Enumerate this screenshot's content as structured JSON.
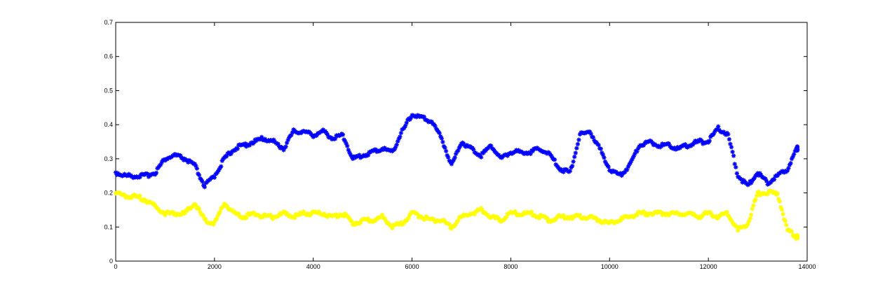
{
  "chart_data": {
    "type": "scatter",
    "title": "",
    "xlabel": "",
    "ylabel": "",
    "xlim": [
      0,
      14000
    ],
    "ylim": [
      0,
      0.7
    ],
    "xticks": [
      0,
      2000,
      4000,
      6000,
      8000,
      10000,
      12000,
      14000
    ],
    "yticks": [
      0,
      0.1,
      0.2,
      0.3,
      0.4,
      0.5,
      0.6,
      0.7
    ],
    "xtick_labels": [
      "0",
      "2000",
      "4000",
      "6000",
      "8000",
      "10000",
      "12000",
      "14000"
    ],
    "ytick_labels": [
      "0",
      "0.1",
      "0.2",
      "0.3",
      "0.4",
      "0.5",
      "0.6",
      "0.7"
    ],
    "grid": false,
    "marker": "*",
    "series": [
      {
        "color": "#0000ff",
        "x": [
          0,
          200,
          400,
          600,
          800,
          1000,
          1200,
          1400,
          1600,
          1800,
          2000,
          2200,
          2400,
          2600,
          2800,
          3000,
          3200,
          3400,
          3600,
          3800,
          4000,
          4200,
          4400,
          4600,
          4800,
          5000,
          5200,
          5400,
          5600,
          5800,
          6000,
          6200,
          6400,
          6600,
          6800,
          7000,
          7200,
          7400,
          7600,
          7800,
          8000,
          8200,
          8400,
          8600,
          8800,
          9000,
          9200,
          9400,
          9600,
          9800,
          10000,
          10200,
          10400,
          10600,
          10800,
          11000,
          11200,
          11400,
          11600,
          11800,
          12000,
          12200,
          12400,
          12600,
          12800,
          13000,
          13200,
          13400,
          13600,
          13800
        ],
        "y": [
          0.26,
          0.25,
          0.25,
          0.25,
          0.26,
          0.3,
          0.31,
          0.3,
          0.28,
          0.22,
          0.25,
          0.3,
          0.33,
          0.34,
          0.35,
          0.36,
          0.35,
          0.33,
          0.38,
          0.38,
          0.37,
          0.38,
          0.36,
          0.37,
          0.3,
          0.31,
          0.32,
          0.33,
          0.32,
          0.38,
          0.43,
          0.42,
          0.41,
          0.36,
          0.28,
          0.35,
          0.33,
          0.31,
          0.34,
          0.3,
          0.32,
          0.32,
          0.32,
          0.33,
          0.31,
          0.27,
          0.26,
          0.37,
          0.38,
          0.33,
          0.27,
          0.25,
          0.28,
          0.34,
          0.35,
          0.34,
          0.34,
          0.33,
          0.34,
          0.35,
          0.35,
          0.39,
          0.37,
          0.25,
          0.22,
          0.26,
          0.23,
          0.25,
          0.27,
          0.33
        ]
      },
      {
        "color": "#ffff00",
        "x": [
          0,
          200,
          400,
          600,
          800,
          1000,
          1200,
          1400,
          1600,
          1800,
          2000,
          2200,
          2400,
          2600,
          2800,
          3000,
          3200,
          3400,
          3600,
          3800,
          4000,
          4200,
          4400,
          4600,
          4800,
          5000,
          5200,
          5400,
          5600,
          5800,
          6000,
          6200,
          6400,
          6600,
          6800,
          7000,
          7200,
          7400,
          7600,
          7800,
          8000,
          8200,
          8400,
          8600,
          8800,
          9000,
          9200,
          9400,
          9600,
          9800,
          10000,
          10200,
          10400,
          10600,
          10800,
          11000,
          11200,
          11400,
          11600,
          11800,
          12000,
          12200,
          12400,
          12600,
          12800,
          13000,
          13200,
          13400,
          13600,
          13800
        ],
        "y": [
          0.2,
          0.19,
          0.19,
          0.18,
          0.16,
          0.14,
          0.14,
          0.14,
          0.17,
          0.12,
          0.11,
          0.17,
          0.14,
          0.13,
          0.14,
          0.13,
          0.13,
          0.14,
          0.13,
          0.14,
          0.14,
          0.14,
          0.13,
          0.14,
          0.11,
          0.12,
          0.12,
          0.13,
          0.1,
          0.11,
          0.14,
          0.13,
          0.12,
          0.12,
          0.1,
          0.13,
          0.14,
          0.15,
          0.13,
          0.12,
          0.14,
          0.14,
          0.14,
          0.13,
          0.12,
          0.13,
          0.13,
          0.13,
          0.13,
          0.12,
          0.11,
          0.12,
          0.13,
          0.14,
          0.14,
          0.14,
          0.14,
          0.14,
          0.14,
          0.13,
          0.14,
          0.13,
          0.14,
          0.09,
          0.11,
          0.2,
          0.2,
          0.2,
          0.09,
          0.07
        ]
      }
    ]
  }
}
